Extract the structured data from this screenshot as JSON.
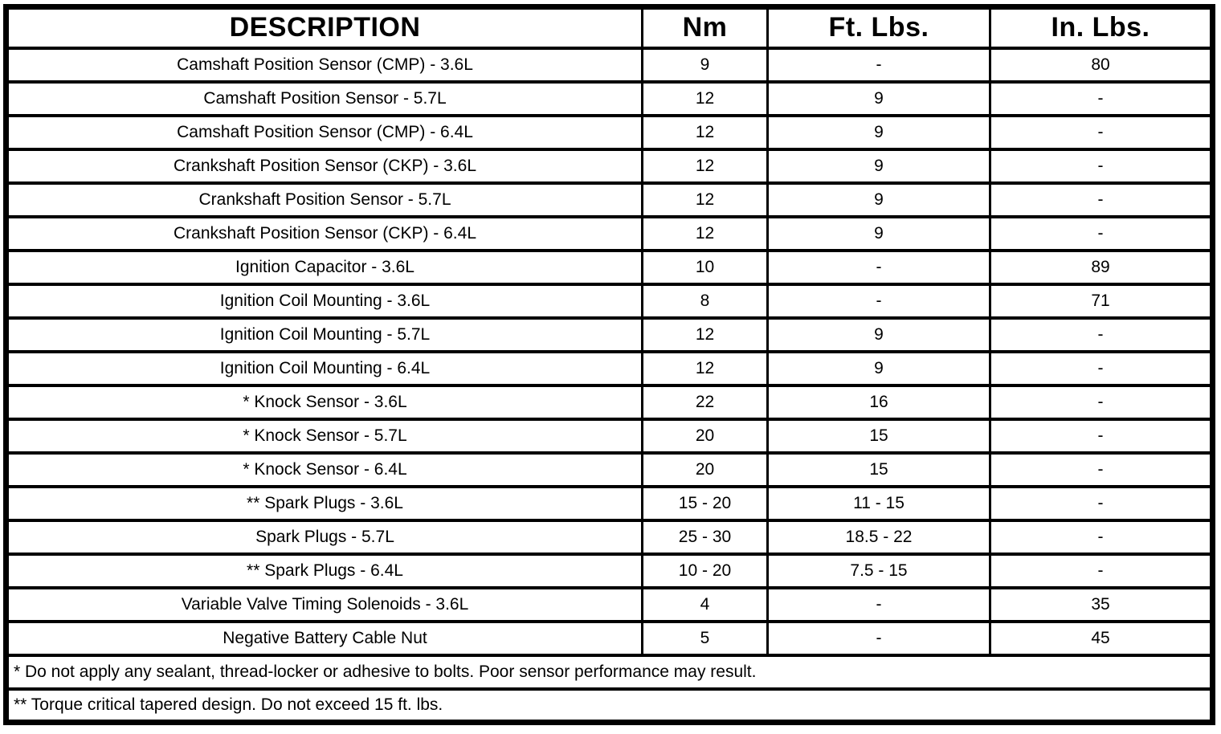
{
  "table": {
    "headers": [
      "DESCRIPTION",
      "Nm",
      "Ft. Lbs.",
      "In. Lbs."
    ],
    "rows": [
      {
        "description": "Camshaft Position Sensor (CMP) - 3.6L",
        "nm": "9",
        "ft_lbs": "-",
        "in_lbs": "80"
      },
      {
        "description": "Camshaft Position Sensor - 5.7L",
        "nm": "12",
        "ft_lbs": "9",
        "in_lbs": "-"
      },
      {
        "description": "Camshaft Position Sensor (CMP) - 6.4L",
        "nm": "12",
        "ft_lbs": "9",
        "in_lbs": "-"
      },
      {
        "description": "Crankshaft Position Sensor (CKP) - 3.6L",
        "nm": "12",
        "ft_lbs": "9",
        "in_lbs": "-"
      },
      {
        "description": "Crankshaft Position Sensor - 5.7L",
        "nm": "12",
        "ft_lbs": "9",
        "in_lbs": "-"
      },
      {
        "description": "Crankshaft Position Sensor (CKP) - 6.4L",
        "nm": "12",
        "ft_lbs": "9",
        "in_lbs": "-"
      },
      {
        "description": "Ignition Capacitor - 3.6L",
        "nm": "10",
        "ft_lbs": "-",
        "in_lbs": "89"
      },
      {
        "description": "Ignition Coil Mounting - 3.6L",
        "nm": "8",
        "ft_lbs": "-",
        "in_lbs": "71"
      },
      {
        "description": "Ignition Coil Mounting - 5.7L",
        "nm": "12",
        "ft_lbs": "9",
        "in_lbs": "-"
      },
      {
        "description": "Ignition Coil Mounting - 6.4L",
        "nm": "12",
        "ft_lbs": "9",
        "in_lbs": "-"
      },
      {
        "description": "* Knock Sensor - 3.6L",
        "nm": "22",
        "ft_lbs": "16",
        "in_lbs": "-"
      },
      {
        "description": "* Knock Sensor - 5.7L",
        "nm": "20",
        "ft_lbs": "15",
        "in_lbs": "-"
      },
      {
        "description": "* Knock Sensor - 6.4L",
        "nm": "20",
        "ft_lbs": "15",
        "in_lbs": "-"
      },
      {
        "description": "** Spark Plugs - 3.6L",
        "nm": "15 - 20",
        "ft_lbs": "11 - 15",
        "in_lbs": "-"
      },
      {
        "description": "Spark Plugs - 5.7L",
        "nm": "25 - 30",
        "ft_lbs": "18.5 - 22",
        "in_lbs": "-"
      },
      {
        "description": "** Spark Plugs - 6.4L",
        "nm": "10 - 20",
        "ft_lbs": "7.5 - 15",
        "in_lbs": "-"
      },
      {
        "description": "Variable Valve Timing Solenoids - 3.6L",
        "nm": "4",
        "ft_lbs": "-",
        "in_lbs": "35"
      },
      {
        "description": "Negative Battery Cable Nut",
        "nm": "5",
        "ft_lbs": "-",
        "in_lbs": "45"
      }
    ],
    "footnotes": [
      "* Do not apply any sealant, thread-locker or adhesive to bolts. Poor sensor performance may result.",
      "** Torque critical tapered design. Do not exceed 15 ft. lbs."
    ]
  }
}
